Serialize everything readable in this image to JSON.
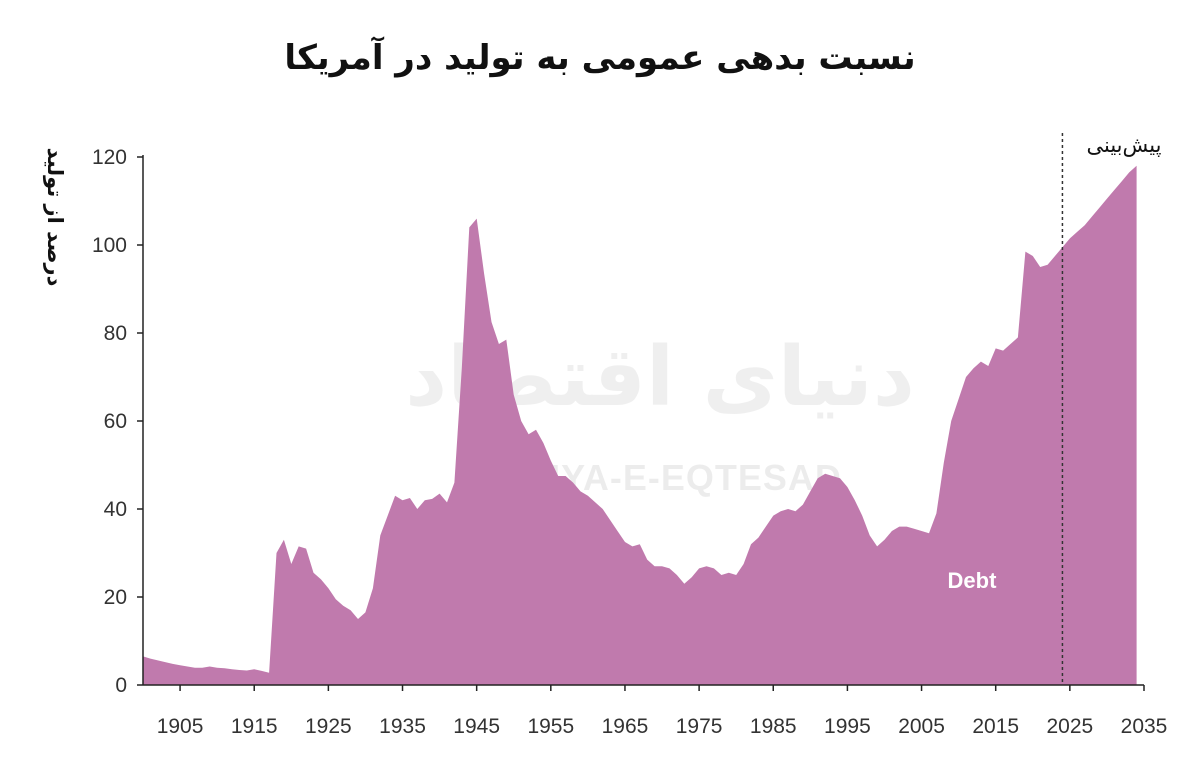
{
  "chart_data": {
    "type": "area",
    "title": "نسبت بدهی عمومی به تولید در آمریکا",
    "ylabel": "درصد از تولید",
    "xlabel": "",
    "xlim": [
      1900,
      2035
    ],
    "ylim": [
      0,
      120
    ],
    "x_ticks": [
      1905,
      1915,
      1925,
      1935,
      1945,
      1955,
      1965,
      1975,
      1985,
      1995,
      2005,
      2015,
      2025,
      2035
    ],
    "y_ticks": [
      0,
      20,
      40,
      60,
      80,
      100,
      120
    ],
    "grid": false,
    "legend": "none",
    "forecast_start": 2024,
    "forecast_label": "پیش‌بینی",
    "series": [
      {
        "name": "Debt",
        "color": "#c07aad",
        "x": [
          1900,
          1901,
          1902,
          1903,
          1904,
          1905,
          1906,
          1907,
          1908,
          1909,
          1910,
          1911,
          1912,
          1913,
          1914,
          1915,
          1916,
          1917,
          1918,
          1919,
          1920,
          1921,
          1922,
          1923,
          1924,
          1925,
          1926,
          1927,
          1928,
          1929,
          1930,
          1931,
          1932,
          1933,
          1934,
          1935,
          1936,
          1937,
          1938,
          1939,
          1940,
          1941,
          1942,
          1943,
          1944,
          1945,
          1946,
          1947,
          1948,
          1949,
          1950,
          1951,
          1952,
          1953,
          1954,
          1955,
          1956,
          1957,
          1958,
          1959,
          1960,
          1961,
          1962,
          1963,
          1964,
          1965,
          1966,
          1967,
          1968,
          1969,
          1970,
          1971,
          1972,
          1973,
          1974,
          1975,
          1976,
          1977,
          1978,
          1979,
          1980,
          1981,
          1982,
          1983,
          1984,
          1985,
          1986,
          1987,
          1988,
          1989,
          1990,
          1991,
          1992,
          1993,
          1994,
          1995,
          1996,
          1997,
          1998,
          1999,
          2000,
          2001,
          2002,
          2003,
          2004,
          2005,
          2006,
          2007,
          2008,
          2009,
          2010,
          2011,
          2012,
          2013,
          2014,
          2015,
          2016,
          2017,
          2018,
          2019,
          2020,
          2021,
          2022,
          2023,
          2024,
          2025,
          2026,
          2027,
          2028,
          2029,
          2030,
          2031,
          2032,
          2033,
          2034
        ],
        "values": [
          6.5,
          6.0,
          5.6,
          5.2,
          4.8,
          4.5,
          4.2,
          3.9,
          3.9,
          4.2,
          3.9,
          3.8,
          3.6,
          3.4,
          3.3,
          3.6,
          3.2,
          2.8,
          30.0,
          33.0,
          27.5,
          31.5,
          31.0,
          25.5,
          24.0,
          22.0,
          19.5,
          18.0,
          17.0,
          15.0,
          16.5,
          22.0,
          34.0,
          38.5,
          43.0,
          42.0,
          42.5,
          40.0,
          42.0,
          42.3,
          43.5,
          41.5,
          46.0,
          72.0,
          104.0,
          106.0,
          93.5,
          82.5,
          77.5,
          78.5,
          66.0,
          60.0,
          57.0,
          58.0,
          55.0,
          51.0,
          47.5,
          47.5,
          46.0,
          44.0,
          43.0,
          41.5,
          40.0,
          37.5,
          35.0,
          32.5,
          31.5,
          32.0,
          28.5,
          27.0,
          27.0,
          26.5,
          25.0,
          23.0,
          24.5,
          26.5,
          27.0,
          26.5,
          25.0,
          25.5,
          25.0,
          27.5,
          32.0,
          33.5,
          36.0,
          38.5,
          39.5,
          40.0,
          39.5,
          41.0,
          44.0,
          47.0,
          48.0,
          47.5,
          47.0,
          45.0,
          42.0,
          38.5,
          34.0,
          31.5,
          33.0,
          35.0,
          36.0,
          36.0,
          35.5,
          35.0,
          34.5,
          39.0,
          50.5,
          60.0,
          65.0,
          70.0,
          72.0,
          73.5,
          72.5,
          76.5,
          76.0,
          77.5,
          79.0,
          98.5,
          97.5,
          95.0,
          95.5,
          97.5,
          99.5,
          101.5,
          103.0,
          104.5,
          106.5,
          108.5,
          110.5,
          112.5,
          114.5,
          116.5,
          118.0
        ]
      }
    ]
  },
  "watermark": {
    "latin": "DONYA-E-EQTESAD",
    "persian": "دنیای اقتصاد"
  }
}
